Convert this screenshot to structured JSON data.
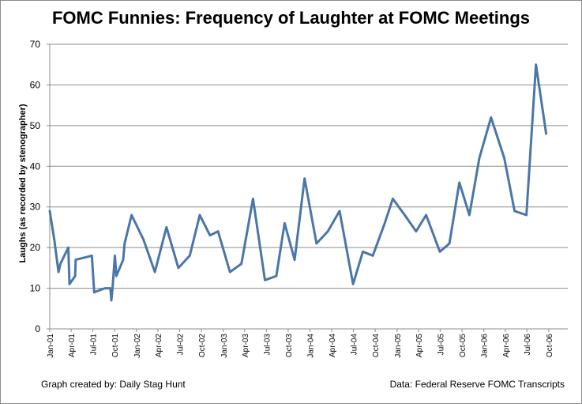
{
  "chart_data": {
    "type": "line",
    "title": "FOMC Funnies: Frequency of Laughter at FOMC Meetings",
    "xlabel": "",
    "ylabel": "Laughs (as recorded by stenographer)",
    "ylim": [
      0,
      70
    ],
    "yticks": [
      0,
      10,
      20,
      30,
      40,
      50,
      60,
      70
    ],
    "grid": "horizontal",
    "legend": "none",
    "x_ticks": [
      "Jan-01",
      "Apr-01",
      "Jul-01",
      "Oct-01",
      "Jan-02",
      "Apr-02",
      "Jul-02",
      "Oct-02",
      "Jan-03",
      "Apr-03",
      "Jul-03",
      "Oct-03",
      "Jan-04",
      "Apr-04",
      "Jul-04",
      "Oct-04",
      "Jan-05",
      "Apr-05",
      "Jul-05",
      "Oct-05",
      "Jan-06",
      "Apr-06",
      "Jul-06",
      "Oct-06"
    ],
    "series": [
      {
        "color": "#4a76a8",
        "points": [
          [
            "2001-01-01",
            29
          ],
          [
            "2001-01-20",
            22
          ],
          [
            "2001-02-07",
            14
          ],
          [
            "2001-02-15",
            16
          ],
          [
            "2001-03-20",
            20
          ],
          [
            "2001-03-25",
            11
          ],
          [
            "2001-04-18",
            13
          ],
          [
            "2001-04-20",
            17
          ],
          [
            "2001-06-27",
            18
          ],
          [
            "2001-07-07",
            9
          ],
          [
            "2001-08-21",
            10
          ],
          [
            "2001-09-13",
            10
          ],
          [
            "2001-09-17",
            7
          ],
          [
            "2001-09-22",
            10
          ],
          [
            "2001-10-02",
            18
          ],
          [
            "2001-10-08",
            13
          ],
          [
            "2001-11-06",
            17
          ],
          [
            "2001-11-12",
            21
          ],
          [
            "2001-12-11",
            28
          ],
          [
            "2002-01-30",
            22
          ],
          [
            "2002-03-19",
            14
          ],
          [
            "2002-05-07",
            25
          ],
          [
            "2002-06-26",
            15
          ],
          [
            "2002-08-13",
            18
          ],
          [
            "2002-09-24",
            28
          ],
          [
            "2002-11-06",
            23
          ],
          [
            "2002-12-10",
            24
          ],
          [
            "2003-01-29",
            14
          ],
          [
            "2003-03-18",
            16
          ],
          [
            "2003-05-06",
            32
          ],
          [
            "2003-06-25",
            12
          ],
          [
            "2003-08-12",
            13
          ],
          [
            "2003-09-16",
            26
          ],
          [
            "2003-10-28",
            17
          ],
          [
            "2003-12-09",
            37
          ],
          [
            "2004-01-28",
            21
          ],
          [
            "2004-03-16",
            24
          ],
          [
            "2004-05-04",
            29
          ],
          [
            "2004-06-30",
            11
          ],
          [
            "2004-08-10",
            19
          ],
          [
            "2004-09-21",
            18
          ],
          [
            "2004-11-10",
            26
          ],
          [
            "2004-12-14",
            32
          ],
          [
            "2005-02-02",
            28
          ],
          [
            "2005-03-22",
            24
          ],
          [
            "2005-05-03",
            28
          ],
          [
            "2005-06-30",
            19
          ],
          [
            "2005-08-09",
            21
          ],
          [
            "2005-09-20",
            36
          ],
          [
            "2005-11-01",
            28
          ],
          [
            "2005-12-13",
            42
          ],
          [
            "2006-01-31",
            52
          ],
          [
            "2006-03-28",
            42
          ],
          [
            "2006-05-10",
            29
          ],
          [
            "2006-06-29",
            28
          ],
          [
            "2006-08-08",
            65
          ],
          [
            "2006-09-20",
            48
          ]
        ]
      }
    ]
  },
  "footer": {
    "credit": "Graph created by: Daily Stag Hunt",
    "source": "Data: Federal Reserve FOMC Transcripts"
  }
}
